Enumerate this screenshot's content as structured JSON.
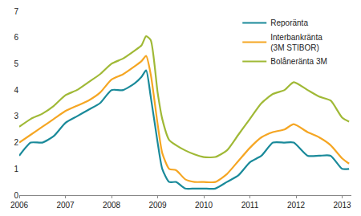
{
  "chart_data": {
    "type": "line",
    "x": [
      2006.0,
      2006.25,
      2006.5,
      2006.75,
      2007.0,
      2007.25,
      2007.5,
      2007.75,
      2008.0,
      2008.25,
      2008.5,
      2008.65,
      2008.75,
      2008.85,
      2009.0,
      2009.1,
      2009.25,
      2009.4,
      2009.6,
      2009.8,
      2010.0,
      2010.25,
      2010.5,
      2010.75,
      2011.0,
      2011.25,
      2011.5,
      2011.75,
      2011.95,
      2012.25,
      2012.5,
      2012.75,
      2013.0,
      2013.15
    ],
    "series": [
      {
        "name": "Reporänta",
        "color": "#1a8a9a",
        "values": [
          1.5,
          2.0,
          2.0,
          2.25,
          2.75,
          3.0,
          3.25,
          3.5,
          4.0,
          4.0,
          4.25,
          4.5,
          4.75,
          3.75,
          2.0,
          1.0,
          0.5,
          0.5,
          0.25,
          0.25,
          0.25,
          0.25,
          0.5,
          0.75,
          1.25,
          1.5,
          2.0,
          2.0,
          2.0,
          1.5,
          1.5,
          1.5,
          1.0,
          1.0
        ]
      },
      {
        "name": "Interbankränta (3M STIBOR)",
        "color": "#f5a623",
        "values": [
          2.0,
          2.3,
          2.6,
          2.9,
          3.2,
          3.4,
          3.6,
          3.9,
          4.4,
          4.6,
          4.9,
          5.1,
          5.3,
          4.6,
          2.7,
          1.6,
          1.0,
          0.95,
          0.6,
          0.5,
          0.5,
          0.5,
          0.8,
          1.3,
          1.8,
          2.2,
          2.4,
          2.5,
          2.7,
          2.4,
          2.2,
          1.9,
          1.4,
          1.2
        ]
      },
      {
        "name": "Bolåneränta 3M",
        "color": "#a0b936",
        "values": [
          2.6,
          2.9,
          3.1,
          3.4,
          3.8,
          4.0,
          4.3,
          4.6,
          5.0,
          5.2,
          5.5,
          5.7,
          6.05,
          5.9,
          3.9,
          2.9,
          2.1,
          1.9,
          1.7,
          1.55,
          1.45,
          1.45,
          1.7,
          2.3,
          2.9,
          3.5,
          3.85,
          4.0,
          4.3,
          4.0,
          3.75,
          3.6,
          2.95,
          2.8
        ]
      }
    ],
    "xlim": [
      2006,
      2013.2
    ],
    "xticks": [
      2006,
      2007,
      2008,
      2009,
      2010,
      2011,
      2012,
      2013
    ],
    "ylim": [
      0,
      7
    ],
    "yticks": [
      0,
      1,
      2,
      3,
      4,
      5,
      6,
      7
    ],
    "grid": false,
    "legend": "top right"
  }
}
